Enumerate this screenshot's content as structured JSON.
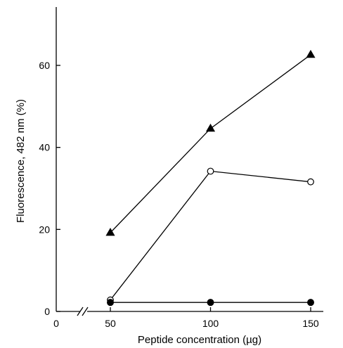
{
  "chart_data": {
    "type": "line",
    "xlabel": "Peptide concentration (µg)",
    "ylabel": "Fluorescence, 482 nm (%)",
    "xlim": [
      0,
      170
    ],
    "ylim": [
      0,
      75
    ],
    "x_ticks": [
      0,
      50,
      100,
      150
    ],
    "y_ticks": [
      0,
      20,
      40,
      60
    ],
    "x_axis_break": true,
    "legend": "none",
    "grid": false,
    "series": [
      {
        "marker": "filled-triangle",
        "x": [
          50,
          100,
          150
        ],
        "values": [
          19.2,
          44.6,
          62.6
        ]
      },
      {
        "marker": "open-circle",
        "x": [
          50,
          100,
          150
        ],
        "values": [
          2.8,
          34.2,
          31.6
        ]
      },
      {
        "marker": "filled-circle",
        "x": [
          50,
          100,
          150
        ],
        "values": [
          2.2,
          2.2,
          2.2
        ]
      }
    ]
  }
}
